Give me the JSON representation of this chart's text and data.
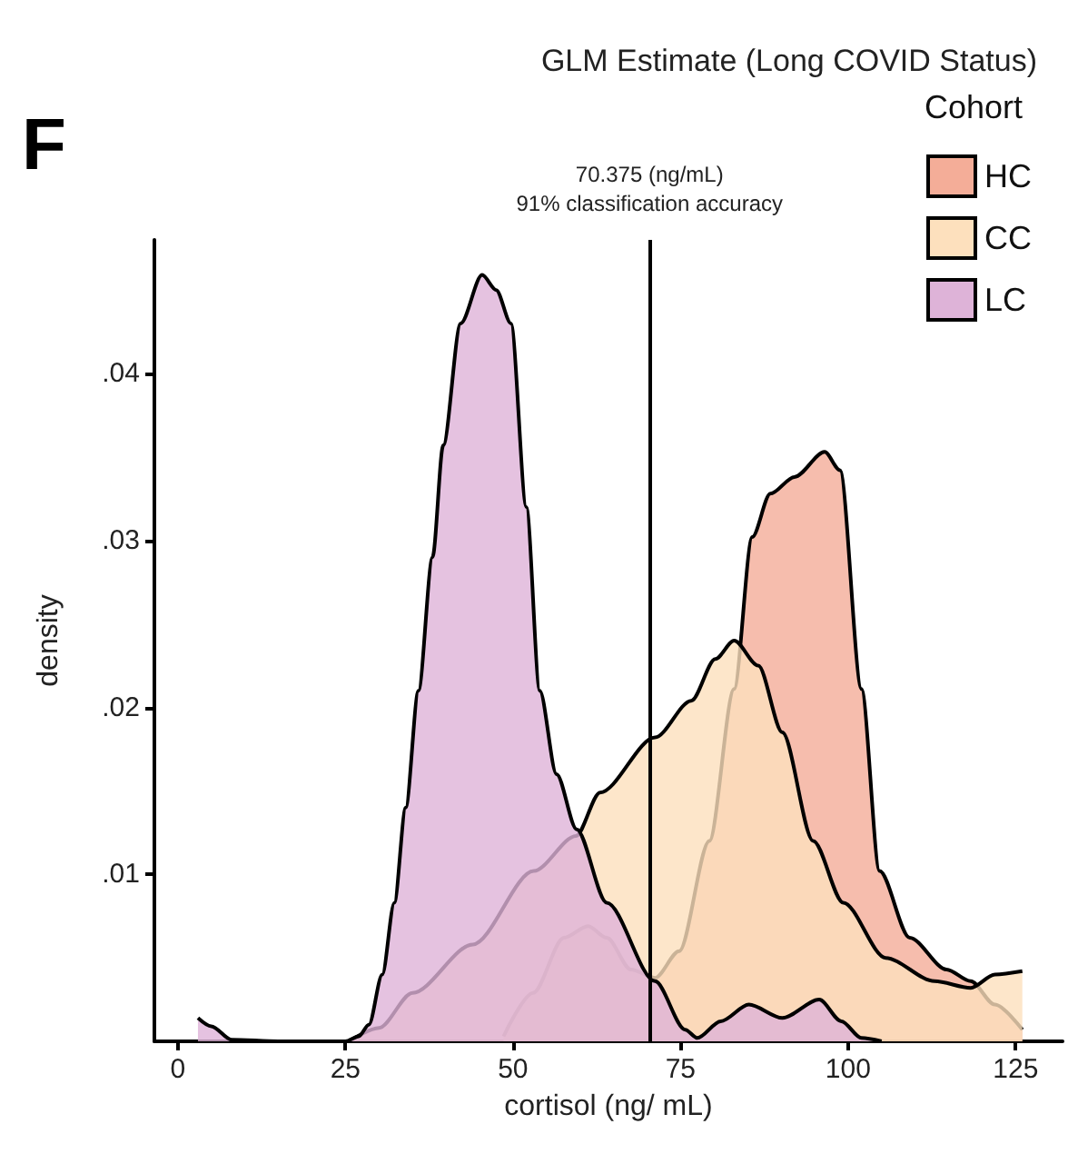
{
  "chart_data": {
    "type": "area",
    "title": "GLM Estimate (Long COVID Status)",
    "xlabel": "cortisol (ng/ mL)",
    "ylabel": "density",
    "legend_title": "Cohort",
    "annotations": [
      "F"
    ],
    "series": [
      {
        "name": "HC",
        "color": "#f4ad98",
        "x": [
          48.6,
          53,
          57.6,
          61.2,
          64,
          67.6,
          71.2,
          74.8,
          79.3,
          83,
          85.7,
          88.4,
          92,
          96.5,
          98.8,
          102,
          104.7,
          109.2,
          114.7,
          118.3,
          121.9,
          126
        ],
        "values": [
          0.0003,
          0.0029,
          0.0062,
          0.0069,
          0.0062,
          0.0043,
          0.0038,
          0.0054,
          0.012,
          0.0211,
          0.0302,
          0.0328,
          0.0338,
          0.0353,
          0.0342,
          0.0211,
          0.0102,
          0.0062,
          0.0043,
          0.0036,
          0.0022,
          0.0007
        ]
      },
      {
        "name": "CC",
        "color": "#fde0bd",
        "x": [
          25.9,
          30,
          35,
          44,
          53.1,
          59.4,
          63,
          71.2,
          76.6,
          80.2,
          83,
          86.6,
          90.2,
          94.8,
          99.3,
          105.6,
          112.9,
          118.3,
          121.9,
          126
        ],
        "values": [
          0.0001,
          0.0008,
          0.0029,
          0.0058,
          0.0102,
          0.0123,
          0.0149,
          0.0182,
          0.0204,
          0.0229,
          0.024,
          0.0225,
          0.0185,
          0.012,
          0.0083,
          0.005,
          0.0036,
          0.0032,
          0.004,
          0.0042
        ]
      },
      {
        "name": "LC",
        "color": "#deb3d8",
        "x": [
          3,
          5,
          8,
          15,
          25,
          27,
          28.5,
          30.5,
          32.3,
          34,
          35.9,
          38,
          39.6,
          42.2,
          45.4,
          47.5,
          49.7,
          52,
          54,
          56.5,
          59.5,
          64,
          71.2,
          75.7,
          77.5,
          81,
          85.2,
          90.2,
          95.7,
          99,
          102,
          105
        ],
        "values": [
          0.0014,
          0.0009,
          0.0001,
          0,
          0,
          0.0003,
          0.001,
          0.004,
          0.0083,
          0.014,
          0.021,
          0.029,
          0.0357,
          0.043,
          0.0459,
          0.045,
          0.043,
          0.032,
          0.021,
          0.016,
          0.0127,
          0.0083,
          0.0036,
          0.0007,
          0.0002,
          0.0012,
          0.0022,
          0.0014,
          0.0025,
          0.0012,
          0.0002,
          0
        ]
      }
    ],
    "xlim": [
      -3.5,
      132
    ],
    "xticks": [
      0,
      25,
      50,
      75,
      100,
      125
    ],
    "ylim": [
      0,
      0.048
    ],
    "yticks": [
      {
        "value": 0.01,
        "label": ".01"
      },
      {
        "value": 0.02,
        "label": ".02"
      },
      {
        "value": 0.03,
        "label": ".03"
      },
      {
        "value": 0.04,
        "label": ".04"
      }
    ],
    "ref_lines": [
      {
        "axis": "x",
        "value": 70.375,
        "label": "70.375 (ng/mL)\n91% classification accuracy",
        "color": "#000000"
      }
    ],
    "legend": "top right",
    "grid": false
  }
}
